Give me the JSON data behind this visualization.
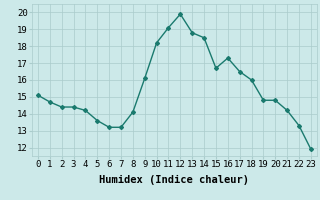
{
  "x": [
    0,
    1,
    2,
    3,
    4,
    5,
    6,
    7,
    8,
    9,
    10,
    11,
    12,
    13,
    14,
    15,
    16,
    17,
    18,
    19,
    20,
    21,
    22,
    23
  ],
  "y": [
    15.1,
    14.7,
    14.4,
    14.4,
    14.2,
    13.6,
    13.2,
    13.2,
    14.1,
    16.1,
    18.2,
    19.1,
    19.9,
    18.8,
    18.5,
    16.7,
    17.3,
    16.5,
    16.0,
    14.8,
    14.8,
    14.2,
    13.3,
    11.9
  ],
  "line_color": "#1a7a6e",
  "marker": "D",
  "marker_size": 2,
  "bg_color": "#cce9e9",
  "grid_color": "#aacccc",
  "xlabel": "Humidex (Indice chaleur)",
  "xlim": [
    -0.5,
    23.5
  ],
  "ylim": [
    11.5,
    20.5
  ],
  "xticks": [
    0,
    1,
    2,
    3,
    4,
    5,
    6,
    7,
    8,
    9,
    10,
    11,
    12,
    13,
    14,
    15,
    16,
    17,
    18,
    19,
    20,
    21,
    22,
    23
  ],
  "yticks": [
    12,
    13,
    14,
    15,
    16,
    17,
    18,
    19,
    20
  ],
  "xlabel_fontsize": 7.5,
  "tick_fontsize": 6.5
}
